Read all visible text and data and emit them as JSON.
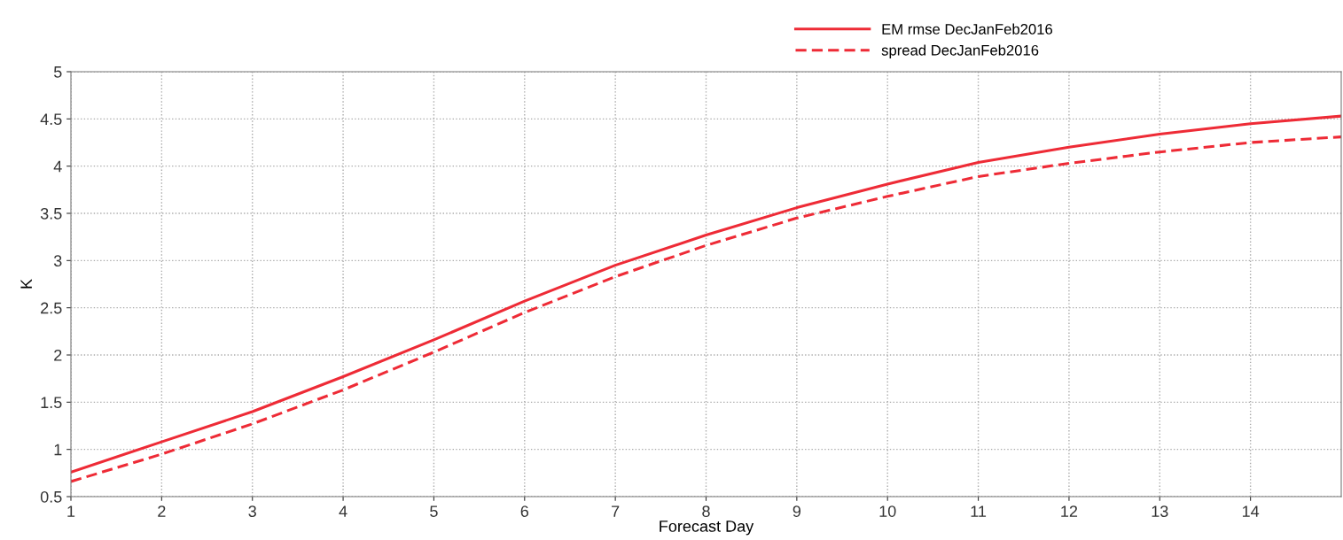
{
  "chart_data": {
    "type": "line",
    "xlabel": "Forecast Day",
    "ylabel": "K",
    "x": [
      1,
      2,
      3,
      4,
      5,
      6,
      7,
      8,
      9,
      10,
      11,
      12,
      13,
      14,
      15
    ],
    "series": [
      {
        "name": "EM rmse DecJanFeb2016",
        "color": "#ee2b36",
        "line_style": "solid",
        "values": [
          0.76,
          1.08,
          1.4,
          1.77,
          2.16,
          2.57,
          2.95,
          3.27,
          3.56,
          3.81,
          4.04,
          4.2,
          4.34,
          4.45,
          4.53
        ]
      },
      {
        "name": "spread DecJanFeb2016",
        "color": "#ee2b36",
        "line_style": "dashed",
        "values": [
          0.66,
          0.95,
          1.27,
          1.63,
          2.03,
          2.45,
          2.83,
          3.16,
          3.45,
          3.68,
          3.89,
          4.03,
          4.15,
          4.25,
          4.31
        ]
      }
    ],
    "xlim": [
      1,
      15
    ],
    "xticks": [
      1,
      2,
      3,
      4,
      5,
      6,
      7,
      8,
      9,
      10,
      11,
      12,
      13,
      14
    ],
    "ylim": [
      0.5,
      5
    ],
    "yticks": [
      0.5,
      1,
      1.5,
      2,
      2.5,
      3,
      3.5,
      4,
      4.5,
      5
    ],
    "grid": true,
    "legend": "top right",
    "marker": "none"
  }
}
